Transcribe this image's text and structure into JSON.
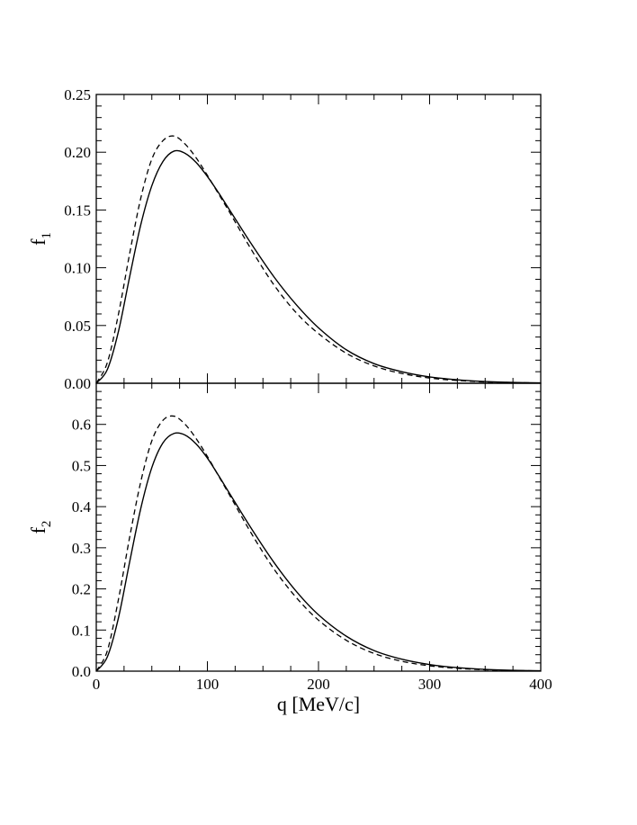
{
  "chart_data": [
    {
      "type": "line",
      "panel": "top",
      "ylabel": "f",
      "ylabel_sub": "1",
      "xlim": [
        0,
        400
      ],
      "ylim": [
        0,
        0.25
      ],
      "yticks": [
        0.0,
        0.05,
        0.1,
        0.15,
        0.2,
        0.25
      ],
      "ytick_labels": [
        "0.00",
        "0.05",
        "0.10",
        "0.15",
        "0.20",
        "0.25"
      ],
      "x": [
        0,
        10,
        20,
        30,
        40,
        50,
        60,
        70,
        80,
        90,
        100,
        110,
        120,
        140,
        160,
        180,
        200,
        225,
        250,
        275,
        300,
        325,
        350,
        375,
        400
      ],
      "series": [
        {
          "name": "solid",
          "style": "solid",
          "values": [
            0,
            0.012,
            0.045,
            0.092,
            0.137,
            0.171,
            0.192,
            0.201,
            0.199,
            0.191,
            0.179,
            0.165,
            0.15,
            0.12,
            0.092,
            0.068,
            0.048,
            0.029,
            0.017,
            0.01,
            0.0055,
            0.003,
            0.0015,
            0.0007,
            0.0003
          ]
        },
        {
          "name": "dashed",
          "style": "dashed",
          "values": [
            0,
            0.018,
            0.06,
            0.112,
            0.16,
            0.194,
            0.21,
            0.214,
            0.207,
            0.195,
            0.18,
            0.164,
            0.148,
            0.115,
            0.085,
            0.061,
            0.043,
            0.026,
            0.015,
            0.0085,
            0.0045,
            0.0024,
            0.0012,
            0.0006,
            0.0002
          ]
        }
      ]
    },
    {
      "type": "line",
      "panel": "bottom",
      "ylabel": "f",
      "ylabel_sub": "2",
      "xlabel": "q [MeV/c]",
      "xlim": [
        0,
        400
      ],
      "ylim": [
        0,
        0.7
      ],
      "yticks": [
        0.0,
        0.1,
        0.2,
        0.3,
        0.4,
        0.5,
        0.6
      ],
      "ytick_labels": [
        "0.0",
        "0.1",
        "0.2",
        "0.3",
        "0.4",
        "0.5",
        "0.6"
      ],
      "xticks": [
        0,
        100,
        200,
        300,
        400
      ],
      "xtick_labels": [
        "0",
        "100",
        "200",
        "300",
        "400"
      ],
      "x": [
        0,
        10,
        20,
        30,
        40,
        50,
        60,
        70,
        80,
        90,
        100,
        110,
        120,
        140,
        160,
        180,
        200,
        225,
        250,
        275,
        300,
        325,
        350,
        375,
        400
      ],
      "series": [
        {
          "name": "solid",
          "style": "solid",
          "values": [
            0,
            0.035,
            0.13,
            0.265,
            0.395,
            0.495,
            0.555,
            0.578,
            0.574,
            0.552,
            0.518,
            0.476,
            0.432,
            0.345,
            0.264,
            0.194,
            0.137,
            0.085,
            0.05,
            0.029,
            0.016,
            0.0085,
            0.0043,
            0.0021,
            0.001
          ]
        },
        {
          "name": "dashed",
          "style": "dashed",
          "values": [
            0,
            0.05,
            0.175,
            0.325,
            0.46,
            0.56,
            0.61,
            0.62,
            0.6,
            0.565,
            0.522,
            0.475,
            0.428,
            0.333,
            0.248,
            0.179,
            0.124,
            0.075,
            0.043,
            0.024,
            0.013,
            0.0068,
            0.0034,
            0.0016,
            0.0007
          ]
        }
      ]
    }
  ]
}
